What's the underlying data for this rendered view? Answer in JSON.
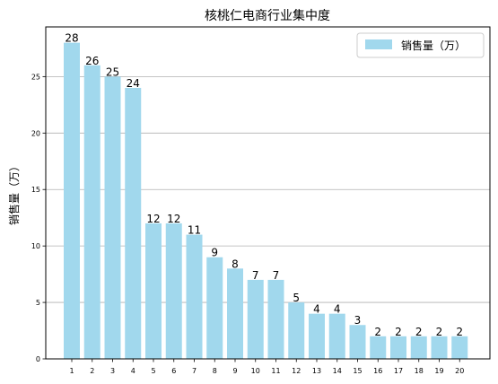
{
  "chart_data": {
    "type": "bar",
    "title": "核桃仁电商行业集中度",
    "xlabel": "",
    "ylabel": "销售量（万）",
    "categories": [
      "1",
      "2",
      "3",
      "4",
      "5",
      "6",
      "7",
      "8",
      "9",
      "10",
      "11",
      "12",
      "13",
      "14",
      "15",
      "16",
      "17",
      "18",
      "19",
      "20"
    ],
    "series": [
      {
        "name": "销售量（万）",
        "values": [
          28,
          26,
          25,
          24,
          12,
          12,
          11,
          9,
          8,
          7,
          7,
          5,
          4,
          4,
          3,
          2,
          2,
          2,
          2,
          2
        ],
        "color": "#a1d8ed"
      }
    ],
    "ylim": [
      0,
      29.4
    ],
    "yticks": [
      0,
      5,
      10,
      15,
      20,
      25
    ],
    "ytick_labels": [
      "0",
      "5",
      "10",
      "15",
      "20",
      "25"
    ],
    "grid": "horizontal",
    "legend_position": "top-right"
  }
}
